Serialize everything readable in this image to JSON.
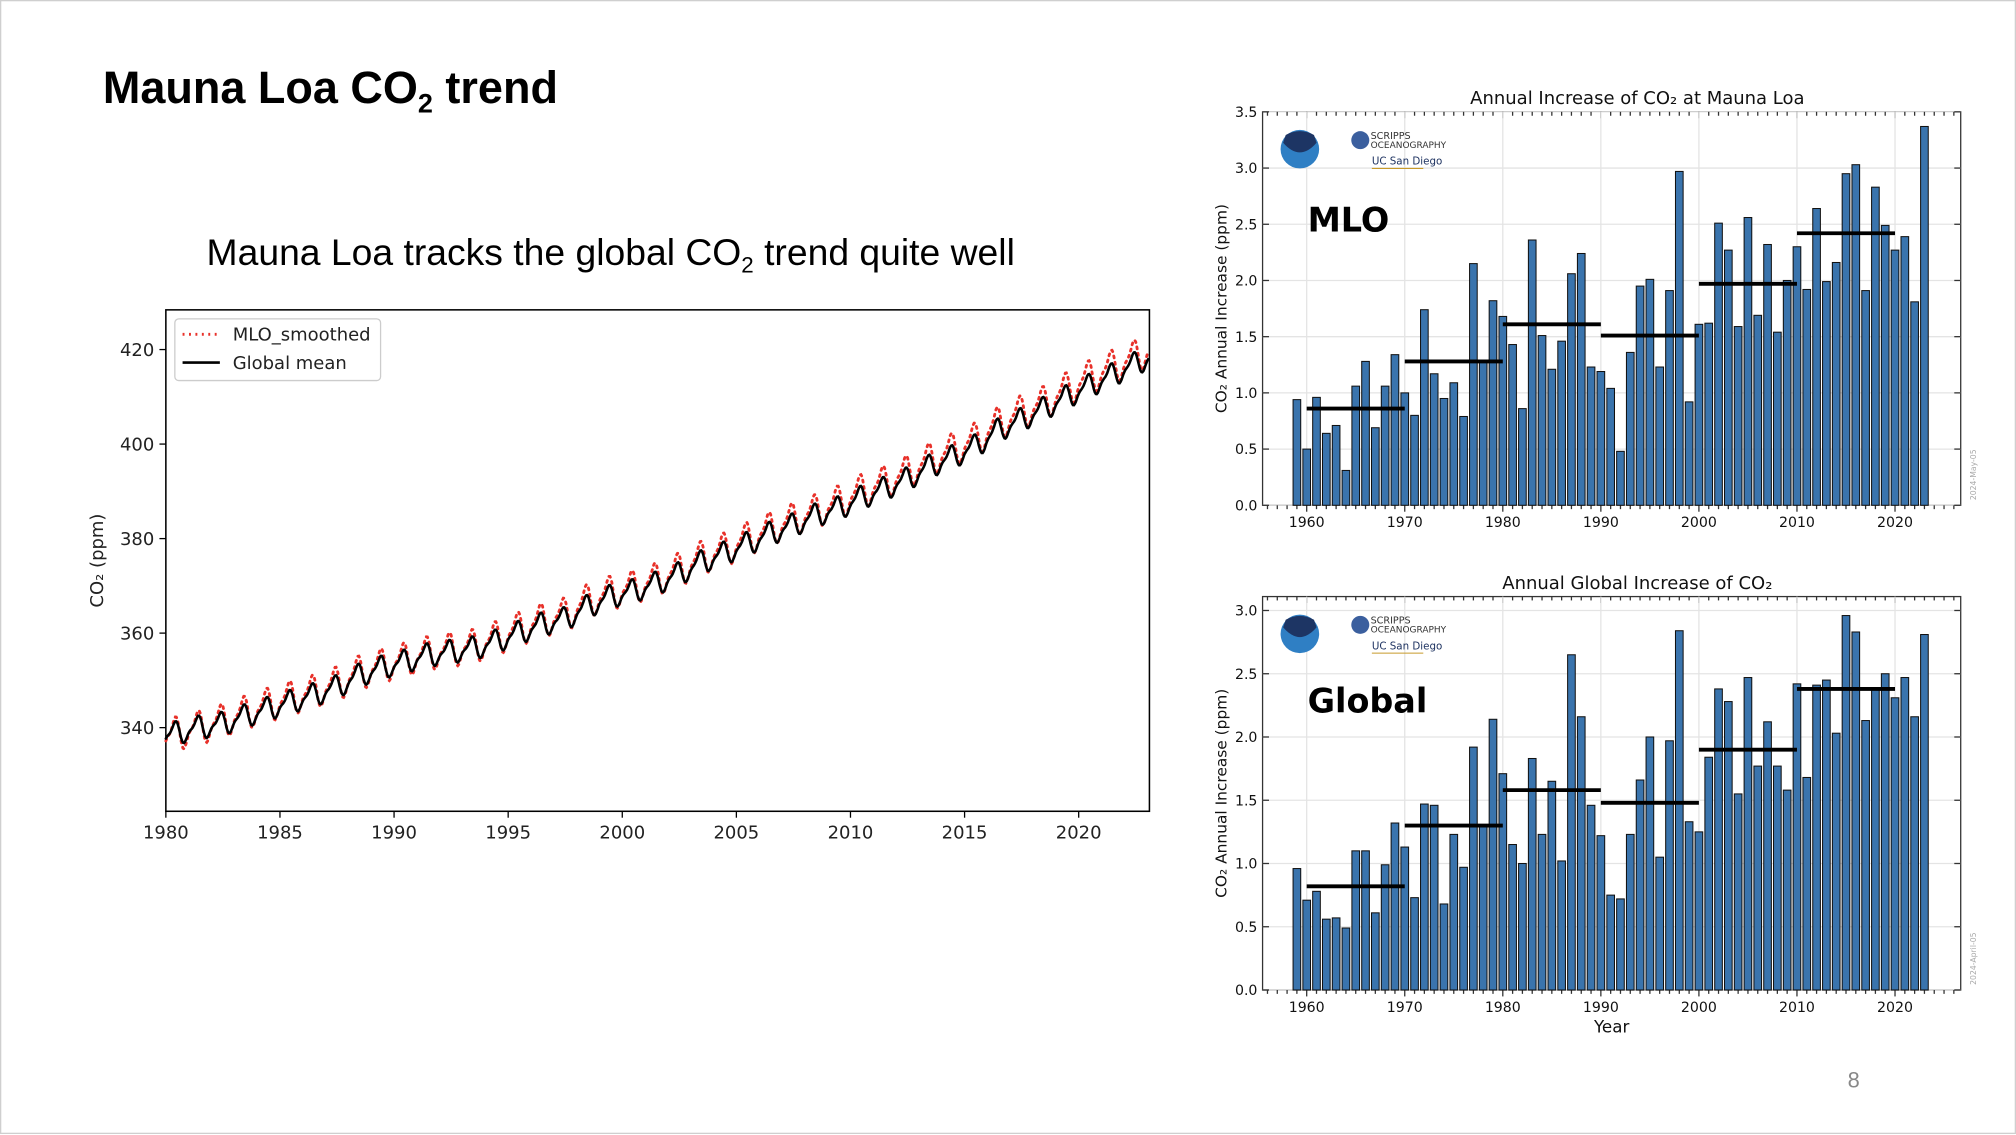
{
  "slide": {
    "title_main": "Mauna Loa CO",
    "title_sub": "2",
    "title_rest": " trend",
    "subtitle_main": "Mauna Loa tracks the global CO",
    "subtitle_sub": "2",
    "subtitle_rest": " trend quite well",
    "page_number": "8"
  },
  "chart_data": [
    {
      "id": "left",
      "type": "line",
      "title": "",
      "ylabel": "CO₂ (ppm)",
      "xlabel": "",
      "xlim": [
        1980,
        2023.1
      ],
      "ylim": [
        322.3,
        428.4
      ],
      "xticks": [
        1980,
        1985,
        1990,
        1995,
        2000,
        2005,
        2010,
        2015,
        2020
      ],
      "yticks": [
        340,
        360,
        380,
        400,
        420
      ],
      "grid": false,
      "legend_position": "top-left",
      "series": [
        {
          "name": "MLO_smoothed",
          "style": "dotted",
          "color": "#e8312a",
          "seasonal_amplitude_ppm": 6.5,
          "x": [
            1980,
            1981,
            1982,
            1983,
            1984,
            1985,
            1986,
            1987,
            1988,
            1989,
            1990,
            1991,
            1992,
            1993,
            1994,
            1995,
            1996,
            1997,
            1998,
            1999,
            2000,
            2001,
            2002,
            2003,
            2004,
            2005,
            2006,
            2007,
            2008,
            2009,
            2010,
            2011,
            2012,
            2013,
            2014,
            2015,
            2016,
            2017,
            2018,
            2019,
            2020,
            2021,
            2022,
            2023
          ],
          "y": [
            338.76,
            340.12,
            341.48,
            343.15,
            344.87,
            346.35,
            347.61,
            349.31,
            351.69,
            353.2,
            354.45,
            355.7,
            356.54,
            357.21,
            358.96,
            360.97,
            362.74,
            363.88,
            366.84,
            368.54,
            369.71,
            371.32,
            373.45,
            375.98,
            377.7,
            379.98,
            382.09,
            384.02,
            385.83,
            387.64,
            390.1,
            391.85,
            394.06,
            396.74,
            398.81,
            401.01,
            404.41,
            406.76,
            408.72,
            411.65,
            414.21,
            416.41,
            418.53,
            421.08
          ]
        },
        {
          "name": "Global mean",
          "style": "solid",
          "color": "#000000",
          "seasonal_amplitude_ppm": 4.5,
          "x": [
            1980,
            1981,
            1982,
            1983,
            1984,
            1985,
            1986,
            1987,
            1988,
            1989,
            1990,
            1991,
            1992,
            1993,
            1994,
            1995,
            1996,
            1997,
            1998,
            1999,
            2000,
            2001,
            2002,
            2003,
            2004,
            2005,
            2006,
            2007,
            2008,
            2009,
            2010,
            2011,
            2012,
            2013,
            2014,
            2015,
            2016,
            2017,
            2018,
            2019,
            2020,
            2021,
            2022,
            2023
          ],
          "y": [
            338.91,
            340.11,
            340.86,
            342.53,
            344.07,
            345.54,
            346.97,
            348.68,
            351.16,
            352.79,
            354.06,
            355.39,
            356.09,
            356.83,
            358.33,
            360.17,
            361.93,
            363.05,
            365.7,
            367.79,
            368.96,
            370.57,
            372.59,
            375.15,
            376.95,
            378.98,
            381.15,
            382.9,
            385.02,
            386.5,
            388.76,
            390.63,
            392.65,
            395.4,
            397.34,
            399.65,
            403.07,
            405.22,
            407.61,
            410.07,
            412.44,
            414.7,
            417.07,
            419.31
          ]
        }
      ]
    },
    {
      "id": "mlo",
      "type": "bar",
      "title": "Annual Increase of CO₂ at Mauna Loa",
      "ylabel": "CO₂ Annual Increase (ppm)",
      "xlabel": "",
      "panel_label": "MLO",
      "date_stamp": "2024-May-05",
      "logos": [
        "NOAA",
        "SCRIPPS INSTITUTION OF OCEANOGRAPHY",
        "UC San Diego"
      ],
      "xlim": [
        1955.5,
        2026.7
      ],
      "ylim": [
        0,
        3.5
      ],
      "xticks": [
        1960,
        1970,
        1980,
        1990,
        2000,
        2010,
        2020
      ],
      "yticks": [
        "0.0",
        "0.5",
        "1.0",
        "1.5",
        "2.0",
        "2.5",
        "3.0",
        "3.5"
      ],
      "grid": true,
      "bar_color": "#3a74ad",
      "x_start": 1959,
      "values": [
        0.94,
        0.5,
        0.96,
        0.64,
        0.71,
        0.31,
        1.06,
        1.28,
        0.69,
        1.06,
        1.34,
        1.0,
        0.8,
        1.74,
        1.17,
        0.95,
        1.09,
        0.79,
        2.15,
        1.29,
        1.82,
        1.68,
        1.43,
        0.86,
        2.36,
        1.51,
        1.21,
        1.46,
        2.06,
        2.24,
        1.23,
        1.19,
        1.04,
        0.48,
        1.36,
        1.95,
        2.01,
        1.23,
        1.91,
        2.97,
        0.92,
        1.61,
        1.62,
        2.51,
        2.27,
        1.59,
        2.56,
        1.69,
        2.32,
        1.54,
        2.0,
        2.3,
        1.92,
        2.64,
        1.99,
        2.16,
        2.95,
        3.03,
        1.91,
        2.83,
        2.49,
        2.27,
        2.39,
        1.81,
        3.37
      ],
      "decade_means": [
        {
          "start": 1960,
          "end": 1970,
          "value": 0.86
        },
        {
          "start": 1970,
          "end": 1980,
          "value": 1.28
        },
        {
          "start": 1980,
          "end": 1990,
          "value": 1.61
        },
        {
          "start": 1990,
          "end": 2000,
          "value": 1.51
        },
        {
          "start": 2000,
          "end": 2010,
          "value": 1.97
        },
        {
          "start": 2010,
          "end": 2020,
          "value": 2.42
        }
      ]
    },
    {
      "id": "global",
      "type": "bar",
      "title": "Annual Global Increase of CO₂",
      "ylabel": "CO₂ Annual Increase (ppm)",
      "xlabel": "Year",
      "panel_label": "Global",
      "date_stamp": "2024-April-05",
      "logos": [
        "NOAA",
        "SCRIPPS INSTITUTION OF OCEANOGRAPHY",
        "UC San Diego"
      ],
      "xlim": [
        1955.5,
        2026.7
      ],
      "ylim": [
        0,
        3.11
      ],
      "xticks": [
        1960,
        1970,
        1980,
        1990,
        2000,
        2010,
        2020
      ],
      "yticks": [
        "0.0",
        "0.5",
        "1.0",
        "1.5",
        "2.0",
        "2.5",
        "3.0"
      ],
      "grid": true,
      "bar_color": "#3a74ad",
      "x_start": 1959,
      "values": [
        0.96,
        0.71,
        0.78,
        0.56,
        0.57,
        0.49,
        1.1,
        1.1,
        0.61,
        0.99,
        1.32,
        1.13,
        0.73,
        1.47,
        1.46,
        0.68,
        1.23,
        0.97,
        1.92,
        1.29,
        2.14,
        1.71,
        1.15,
        1.0,
        1.83,
        1.23,
        1.65,
        1.02,
        2.65,
        2.16,
        1.46,
        1.22,
        0.75,
        0.72,
        1.23,
        1.66,
        2.0,
        1.05,
        1.97,
        2.84,
        1.33,
        1.25,
        1.84,
        2.38,
        2.28,
        1.55,
        2.47,
        1.77,
        2.12,
        1.77,
        1.58,
        2.42,
        1.68,
        2.41,
        2.45,
        2.03,
        2.96,
        2.83,
        2.13,
        2.39,
        2.5,
        2.31,
        2.47,
        2.16,
        2.81
      ],
      "decade_means": [
        {
          "start": 1960,
          "end": 1970,
          "value": 0.82
        },
        {
          "start": 1970,
          "end": 1980,
          "value": 1.3
        },
        {
          "start": 1980,
          "end": 1990,
          "value": 1.58
        },
        {
          "start": 1990,
          "end": 2000,
          "value": 1.48
        },
        {
          "start": 2000,
          "end": 2010,
          "value": 1.9
        },
        {
          "start": 2010,
          "end": 2020,
          "value": 2.38
        }
      ]
    }
  ]
}
